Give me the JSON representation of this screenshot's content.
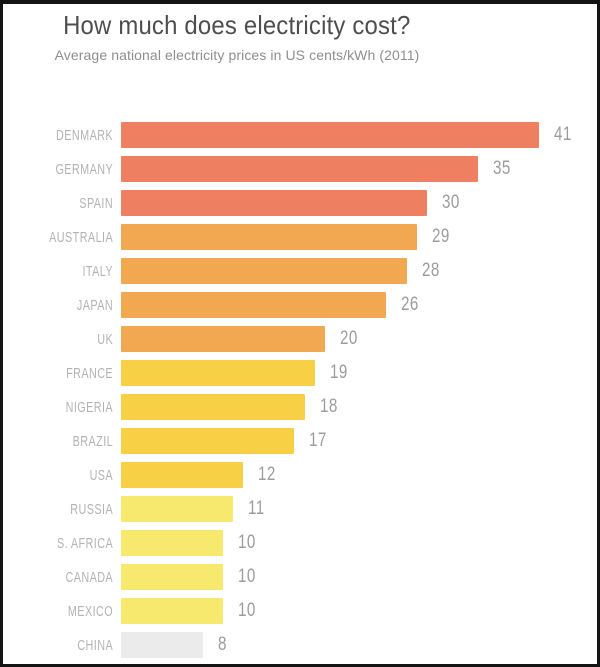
{
  "page": {
    "background_color": "#ffffff",
    "frame_border_color": "#141414"
  },
  "chart_data": {
    "type": "bar",
    "orientation": "horizontal",
    "title": "How much does electricity cost?",
    "subtitle": "Average national electricity prices in US cents/kWh (2011)",
    "categories": [
      "DENMARK",
      "GERMANY",
      "SPAIN",
      "AUSTRALIA",
      "ITALY",
      "JAPAN",
      "UK",
      "FRANCE",
      "NIGERIA",
      "BRAZIL",
      "USA",
      "RUSSIA",
      "S. AFRICA",
      "CANADA",
      "MEXICO",
      "CHINA"
    ],
    "values": [
      41,
      35,
      30,
      29,
      28,
      26,
      20,
      19,
      18,
      17,
      12,
      11,
      10,
      10,
      10,
      8
    ],
    "bar_colors": [
      "#EE7F60",
      "#EE7F60",
      "#EE7F60",
      "#F2A851",
      "#F2A851",
      "#F2A851",
      "#F2A851",
      "#F8D045",
      "#F8D045",
      "#F8D045",
      "#F8D045",
      "#F6E96E",
      "#F6E96E",
      "#F6E96E",
      "#F6E96E",
      "#EBEBEB"
    ],
    "color_bands": {
      "high": "#EE7F60",
      "medium_high": "#F2A851",
      "medium_low": "#F8D045",
      "low": "#F6E96E",
      "lowest": "#EBEBEB"
    },
    "xlim": [
      0,
      41
    ],
    "grid": false,
    "legend": false,
    "value_labels_shown": true,
    "title_color": "#4e4e4e",
    "subtitle_color": "#8e8e8e",
    "category_label_color": "#b3b3b3",
    "value_label_color": "#9c9c9c"
  }
}
